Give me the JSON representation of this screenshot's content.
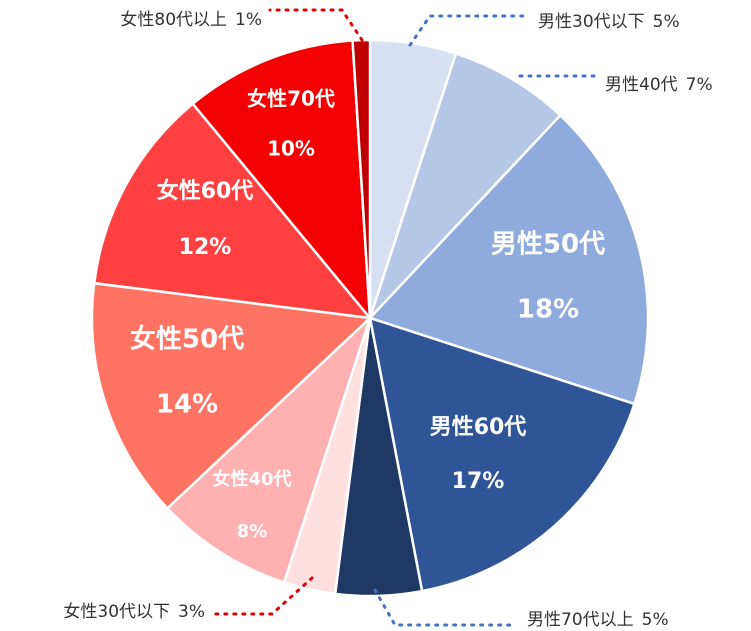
{
  "chart_data": {
    "type": "pie",
    "categories": [
      "男性30代以下",
      "男性40代",
      "男性50代",
      "男性60代",
      "男性70代以上",
      "女性30代以下",
      "女性40代",
      "女性50代",
      "女性60代",
      "女性70代",
      "女性80代以上"
    ],
    "values": [
      5,
      7,
      18,
      17,
      5,
      3,
      8,
      14,
      12,
      10,
      1
    ],
    "value_labels": [
      "5%",
      "7%",
      "18%",
      "17%",
      "5%",
      "3%",
      "8%",
      "14%",
      "12%",
      "10%",
      "1%"
    ],
    "colors": [
      "#d6e0f2",
      "#b4c7e7",
      "#8faadc",
      "#2f5597",
      "#203864",
      "#ffe0e0",
      "#ffb0b0",
      "#ff7363",
      "#ff4040",
      "#f50000",
      "#c00000"
    ]
  }
}
